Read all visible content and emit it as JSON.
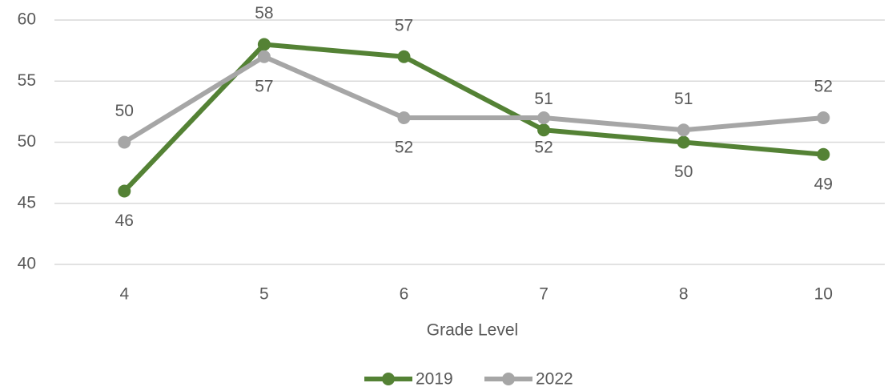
{
  "chart_data": {
    "type": "line",
    "x_label": "Grade Level",
    "categories": [
      "4",
      "5",
      "6",
      "7",
      "8",
      "10"
    ],
    "series": [
      {
        "name": "2019",
        "color": "#548235",
        "values": [
          46,
          58,
          57,
          51,
          50,
          49
        ]
      },
      {
        "name": "2022",
        "color": "#a6a6a6",
        "values": [
          50,
          57,
          52,
          52,
          51,
          52
        ]
      }
    ],
    "ylim": [
      40,
      60
    ],
    "yticks": [
      40,
      45,
      50,
      55,
      60
    ],
    "grid": true,
    "legend": "bottom"
  }
}
